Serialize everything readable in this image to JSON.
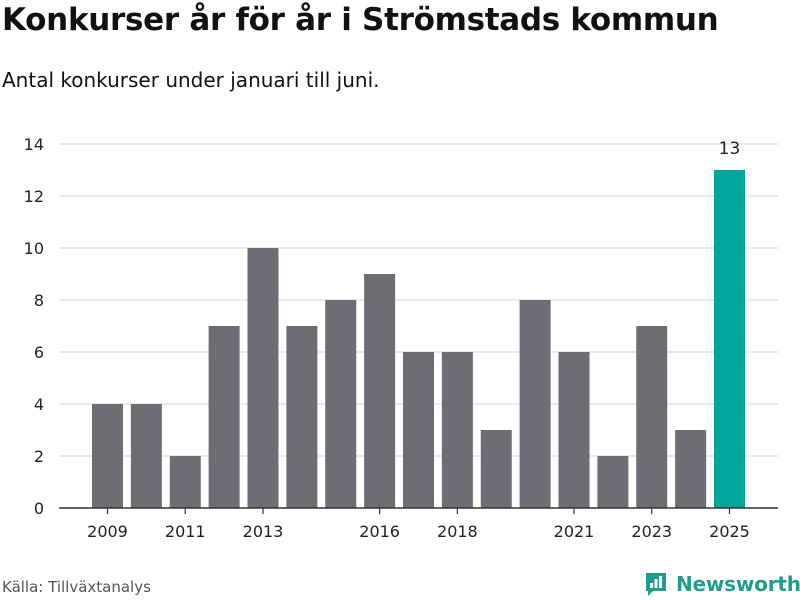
{
  "header": {
    "title": "Konkurser år för år i Strömstads kommun",
    "subtitle": "Antal konkurser under januari till juni."
  },
  "footer": {
    "source": "Källa: Tillväxtanalys",
    "brand": "Newsworthy"
  },
  "colors": {
    "bar": "#6e6d73",
    "highlight": "#00a69a",
    "grid": "#dedede",
    "brand": "#1f9e8f"
  },
  "chart_data": {
    "type": "bar",
    "title": "Konkurser år för år i Strömstads kommun",
    "subtitle": "Antal konkurser under januari till juni.",
    "xlabel": "",
    "ylabel": "",
    "categories": [
      2009,
      2010,
      2011,
      2012,
      2013,
      2014,
      2015,
      2016,
      2017,
      2018,
      2019,
      2020,
      2021,
      2022,
      2023,
      2024,
      2025
    ],
    "values": [
      4,
      4,
      2,
      7,
      10,
      7,
      8,
      9,
      6,
      6,
      3,
      8,
      6,
      2,
      7,
      3,
      13
    ],
    "x_tick_labels": [
      "2009",
      "2011",
      "2013",
      "2016",
      "2018",
      "2021",
      "2023",
      "2025"
    ],
    "y_ticks": [
      "0",
      "2",
      "4",
      "6",
      "8",
      "10",
      "12",
      "14"
    ],
    "ylim": [
      0,
      14
    ],
    "grid": true,
    "highlight_category": 2025,
    "data_labels": [
      {
        "category": 2025,
        "text": "13"
      }
    ]
  }
}
